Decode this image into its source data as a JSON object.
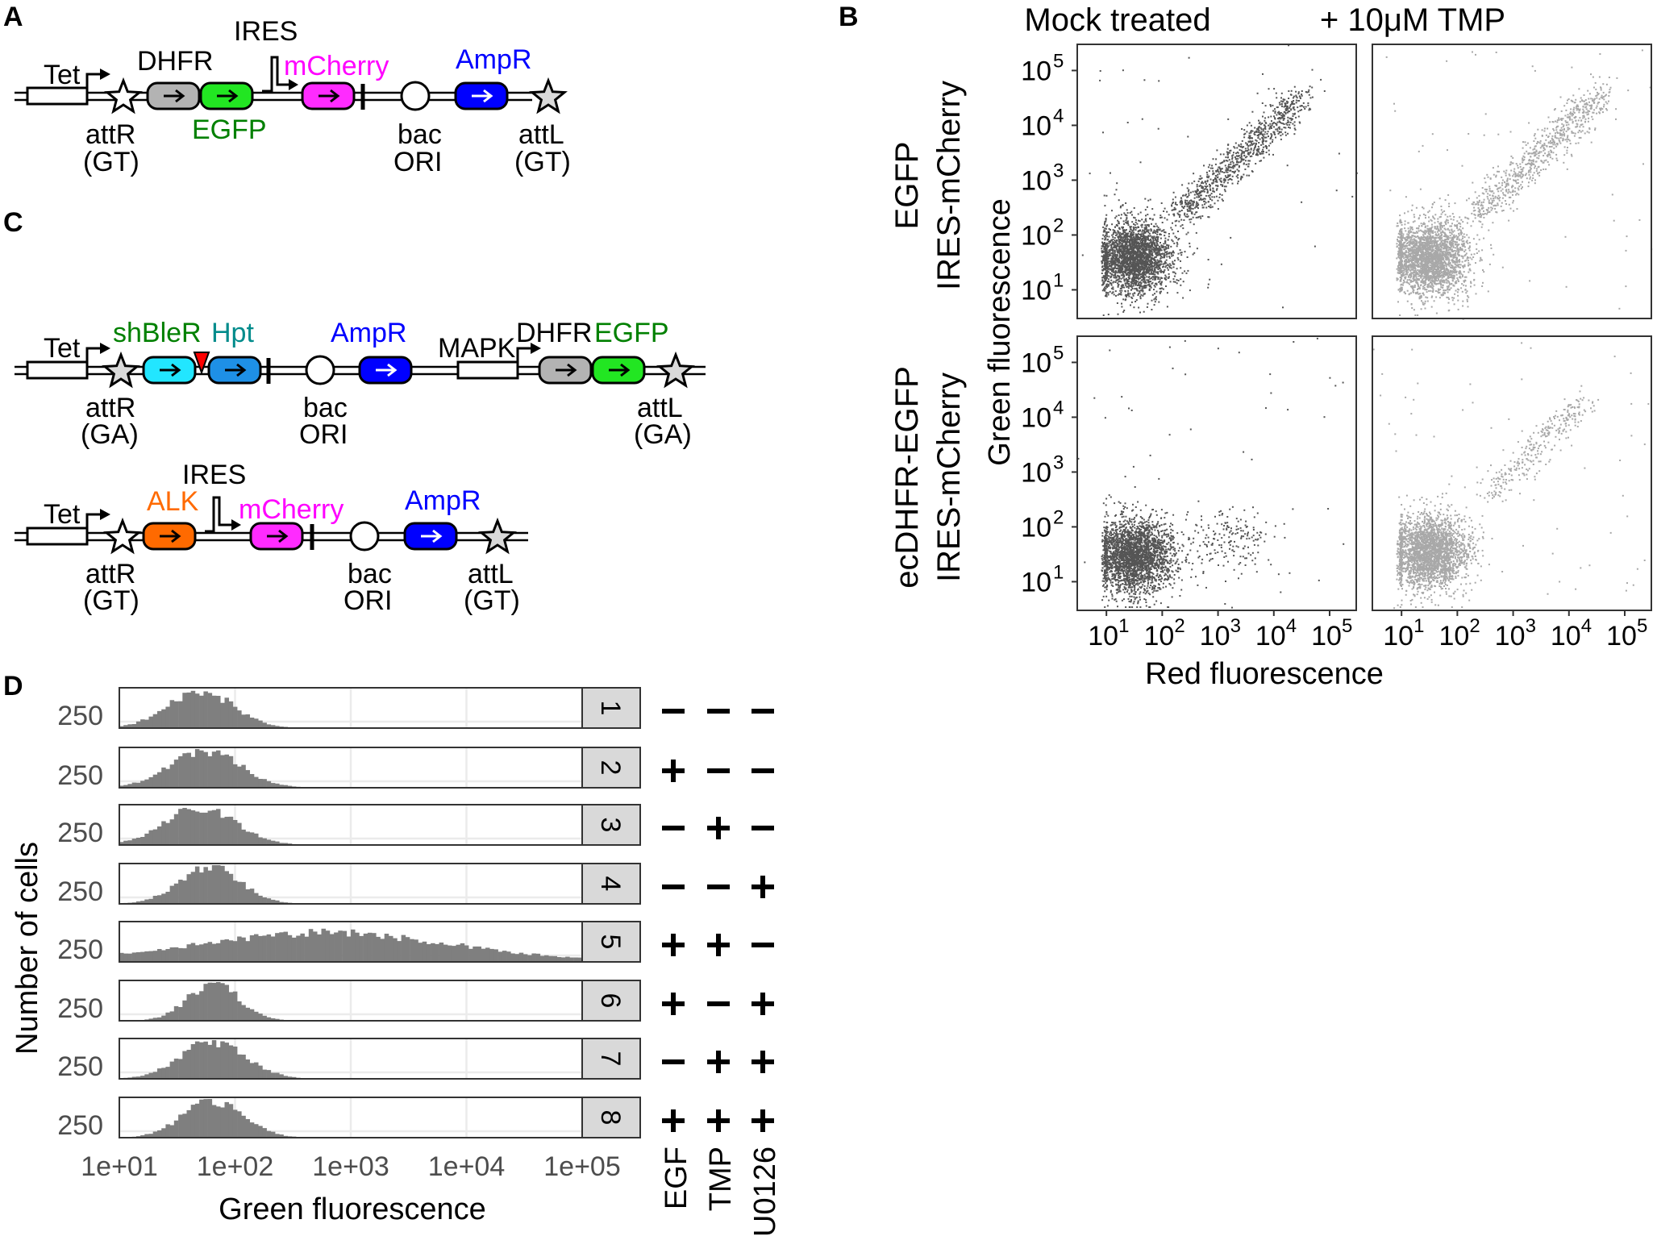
{
  "panels": {
    "A": "A",
    "B": "B",
    "C": "C",
    "D": "D"
  },
  "constructA": {
    "labels": {
      "tet": "Tet",
      "dhfr": "DHFR",
      "egfp": "EGFP",
      "ires": "IRES",
      "mcherry": "mCherry",
      "ampr": "AmpR",
      "attr": "attR",
      "attr_sub": "(GT)",
      "bac": "bac",
      "ori": "ORI",
      "attl": "attL",
      "attl_sub": "(GT)"
    }
  },
  "constructC1": {
    "labels": {
      "tet": "Tet",
      "shbler": "shBleR",
      "hpt": "Hpt",
      "ampr": "AmpR",
      "mapk": "MAPK",
      "dhfr": "DHFR",
      "egfp": "EGFP",
      "attr": "attR",
      "attr_sub": "(GA)",
      "bac": "bac",
      "ori": "ORI",
      "attl": "attL",
      "attl_sub": "(GA)"
    }
  },
  "constructC2": {
    "labels": {
      "tet": "Tet",
      "ires": "IRES",
      "alk": "ALK",
      "mcherry": "mCherry",
      "ampr": "AmpR",
      "attr": "attR",
      "attr_sub": "(GT)",
      "bac": "bac",
      "ori": "ORI",
      "attl": "attL",
      "attl_sub": "(GT)"
    }
  },
  "colors": {
    "dhfr": "#b3b3b3",
    "egfp": "#22e622",
    "mcherry": "#ff2bff",
    "ampr": "#0000ff",
    "shbler": "#22e6ff",
    "hpt": "#1e90e6",
    "alk": "#ff6a00",
    "triangle": "#ff0000",
    "star_gray": "#d9d9d9",
    "egfp_text": "#008000",
    "mcherry_text": "#ff00ff",
    "ampr_text": "#0000ff",
    "hpt_text": "#008b8b",
    "alk_text": "#ff6a00",
    "shbler_text": "#008000",
    "mock_points": "#555555",
    "tmp_points": "#a8a8a8",
    "hist_fill": "#7f7f7f",
    "strip_fill": "#d9d9d9"
  },
  "panelB": {
    "col_labels": [
      "Mock treated",
      "+ 10μM TMP"
    ],
    "row_labels": [
      [
        "EGFP",
        "IRES-mCherry"
      ],
      [
        "ecDHFR-EGFP",
        "IRES-mCherry"
      ]
    ],
    "xlabel": "Red fluorescence",
    "ylabel": "Green fluorescence"
  },
  "panelD": {
    "ylabel": "Number of cells",
    "xlabel": "Green fluorescence",
    "ytick": "250",
    "xticks": [
      "1e+01",
      "1e+02",
      "1e+03",
      "1e+04",
      "1e+05"
    ],
    "cond_labels": [
      "EGF",
      "TMP",
      "U0126"
    ]
  },
  "chart_data": [
    {
      "type": "scatter",
      "panel": "B",
      "x_scale": "log",
      "y_scale": "log",
      "x_ticks": [
        "10",
        "10",
        "10",
        "10",
        "10"
      ],
      "x_tick_exponents": [
        "1",
        "2",
        "3",
        "4",
        "5"
      ],
      "y_ticks": [
        "10",
        "10",
        "10",
        "10",
        "10"
      ],
      "y_tick_exponents": [
        "5",
        "4",
        "3",
        "2",
        "1"
      ],
      "xlim": [
        3,
        300000
      ],
      "ylim": [
        3,
        300000
      ],
      "facets": [
        {
          "row": "EGFP / IRES-mCherry",
          "col": "Mock treated",
          "clusters": [
            {
              "cx": 30,
              "cy": 40,
              "n": 2600
            },
            {
              "diag_from": 200,
              "diag_to": 30000,
              "n": 900
            }
          ]
        },
        {
          "row": "EGFP / IRES-mCherry",
          "col": "+ 10μM TMP",
          "clusters": [
            {
              "cx": 30,
              "cy": 40,
              "n": 2600
            },
            {
              "diag_from": 200,
              "diag_to": 40000,
              "n": 750
            }
          ]
        },
        {
          "row": "ecDHFR-EGFP / IRES-mCherry",
          "col": "Mock treated",
          "clusters": [
            {
              "cx": 30,
              "cy": 30,
              "n": 2600
            },
            {
              "cx": 1500,
              "cy": 60,
              "n": 180
            }
          ]
        },
        {
          "row": "ecDHFR-EGFP / IRES-mCherry",
          "col": "+ 10μM TMP",
          "clusters": [
            {
              "cx": 30,
              "cy": 35,
              "n": 2600
            },
            {
              "diag_from": 300,
              "diag_to": 20000,
              "n": 300
            }
          ]
        }
      ]
    },
    {
      "type": "bar",
      "panel": "D",
      "x_scale": "log",
      "xlim": [
        10,
        100000
      ],
      "y_tick": 250,
      "rows": [
        {
          "id": "1",
          "egf": "−",
          "tmp": "−",
          "u0126": "−",
          "peak": 50,
          "width": 0.28,
          "tail": 0.0
        },
        {
          "id": "2",
          "egf": "+",
          "tmp": "−",
          "u0126": "−",
          "peak": 55,
          "width": 0.3,
          "tail": 0.03
        },
        {
          "id": "3",
          "egf": "−",
          "tmp": "+",
          "u0126": "−",
          "peak": 50,
          "width": 0.3,
          "tail": 0.03
        },
        {
          "id": "4",
          "egf": "−",
          "tmp": "−",
          "u0126": "+",
          "peak": 60,
          "width": 0.26,
          "tail": 0.0
        },
        {
          "id": "5",
          "egf": "+",
          "tmp": "+",
          "u0126": "−",
          "peak": 600,
          "width": 1.1,
          "tail": 0.0
        },
        {
          "id": "6",
          "egf": "+",
          "tmp": "−",
          "u0126": "+",
          "peak": 65,
          "width": 0.22,
          "tail": 0.0
        },
        {
          "id": "7",
          "egf": "−",
          "tmp": "+",
          "u0126": "+",
          "peak": 65,
          "width": 0.28,
          "tail": 0.0
        },
        {
          "id": "8",
          "egf": "+",
          "tmp": "+",
          "u0126": "+",
          "peak": 65,
          "width": 0.26,
          "tail": 0.0
        }
      ]
    }
  ]
}
